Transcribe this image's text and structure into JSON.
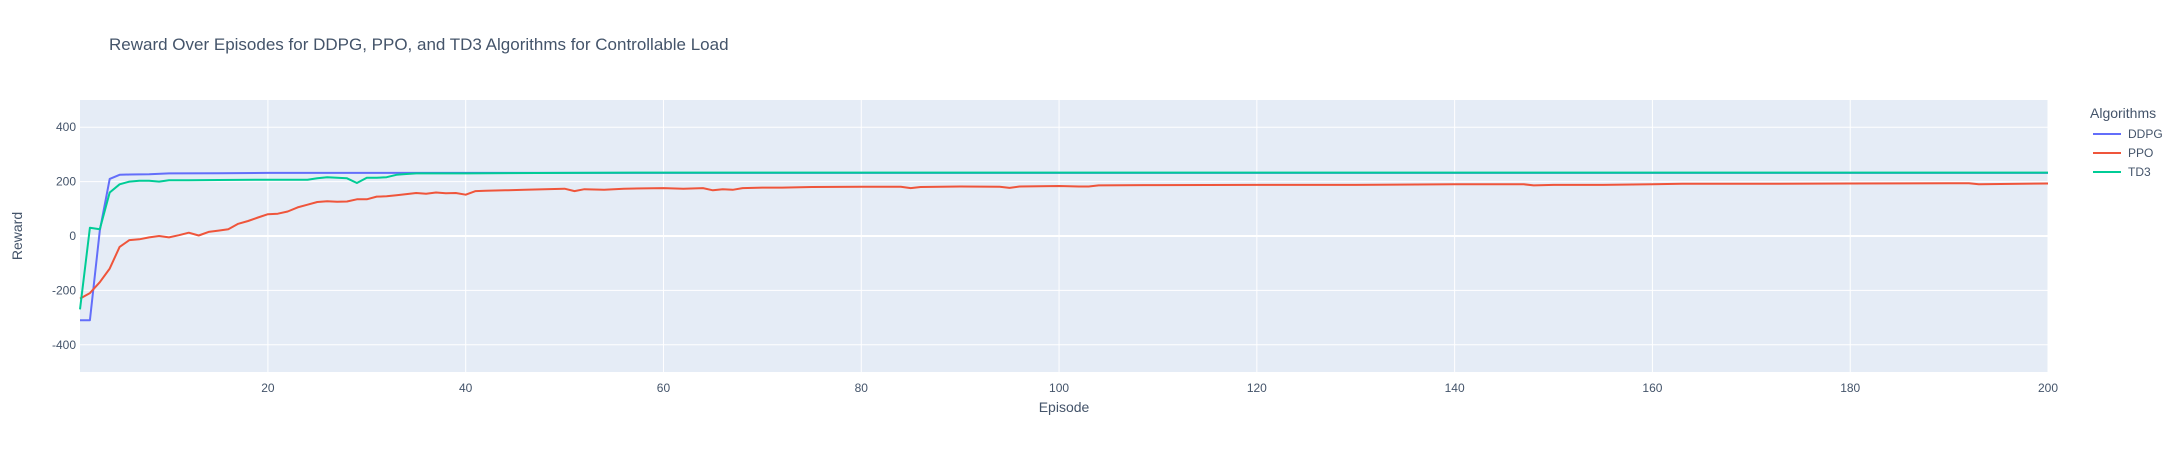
{
  "chart_data": {
    "type": "line",
    "title": "Reward Over Episodes for DDPG, PPO, and TD3 Algorithms for Controllable Load",
    "xlabel": "Episode",
    "ylabel": "Reward",
    "xlim": [
      1,
      200
    ],
    "ylim": [
      -500,
      500
    ],
    "x_ticks": [
      20,
      40,
      60,
      80,
      100,
      120,
      140,
      160,
      180,
      200
    ],
    "y_ticks": [
      -400,
      -200,
      0,
      200,
      400
    ],
    "grid": true,
    "legend": {
      "title": "Algorithms",
      "position": "right"
    },
    "series": [
      {
        "name": "DDPG",
        "color": "#636efa",
        "x": [
          1,
          2,
          3,
          4,
          5,
          6,
          8,
          10,
          15,
          20,
          30,
          40,
          60,
          80,
          100,
          120,
          140,
          160,
          180,
          200
        ],
        "y": [
          -310,
          -310,
          20,
          210,
          225,
          226,
          227,
          230,
          231,
          232,
          232,
          232,
          232,
          232,
          232,
          232,
          232,
          232,
          232,
          232
        ]
      },
      {
        "name": "PPO",
        "color": "#ef553b",
        "x": [
          1,
          2,
          3,
          4,
          5,
          6,
          7,
          8,
          9,
          10,
          11,
          12,
          13,
          14,
          15,
          16,
          17,
          18,
          19,
          20,
          21,
          22,
          23,
          24,
          25,
          26,
          27,
          28,
          29,
          30,
          31,
          32,
          33,
          34,
          35,
          36,
          37,
          38,
          39,
          40,
          41,
          42,
          44,
          46,
          48,
          50,
          51,
          52,
          54,
          56,
          58,
          60,
          62,
          64,
          65,
          66,
          67,
          68,
          70,
          72,
          75,
          80,
          84,
          85,
          86,
          90,
          94,
          95,
          96,
          100,
          102,
          103,
          104,
          110,
          120,
          130,
          140,
          147,
          148,
          150,
          155,
          160,
          163,
          170,
          180,
          190,
          192,
          193,
          200
        ],
        "y": [
          -230,
          -210,
          -170,
          -120,
          -40,
          -15,
          -12,
          -5,
          0,
          -5,
          3,
          12,
          2,
          15,
          20,
          25,
          45,
          55,
          68,
          80,
          82,
          90,
          105,
          115,
          125,
          128,
          126,
          127,
          135,
          135,
          145,
          146,
          150,
          154,
          158,
          155,
          160,
          157,
          158,
          152,
          165,
          166,
          168,
          170,
          172,
          174,
          165,
          172,
          170,
          174,
          175,
          176,
          174,
          176,
          168,
          172,
          170,
          176,
          178,
          178,
          180,
          181,
          181,
          176,
          180,
          182,
          181,
          177,
          182,
          184,
          182,
          182,
          186,
          187,
          188,
          188,
          190,
          190,
          186,
          188,
          188,
          190,
          192,
          192,
          193,
          194,
          194,
          190,
          193
        ]
      },
      {
        "name": "TD3",
        "color": "#00cc96",
        "x": [
          1,
          2,
          3,
          4,
          5,
          6,
          7,
          8,
          9,
          10,
          12,
          15,
          20,
          24,
          25,
          26,
          27,
          28,
          29,
          30,
          31,
          32,
          33,
          34,
          35,
          40,
          50,
          60,
          70,
          80,
          90,
          100,
          110,
          120,
          130,
          140,
          150,
          160,
          170,
          180,
          190,
          200
        ],
        "y": [
          -270,
          30,
          25,
          160,
          190,
          200,
          203,
          203,
          200,
          205,
          205,
          206,
          207,
          207,
          212,
          216,
          214,
          212,
          195,
          214,
          214,
          216,
          225,
          228,
          230,
          230,
          232,
          233,
          233,
          233,
          233,
          233,
          233,
          233,
          233,
          233,
          233,
          233,
          233,
          233,
          233,
          233
        ]
      }
    ]
  }
}
